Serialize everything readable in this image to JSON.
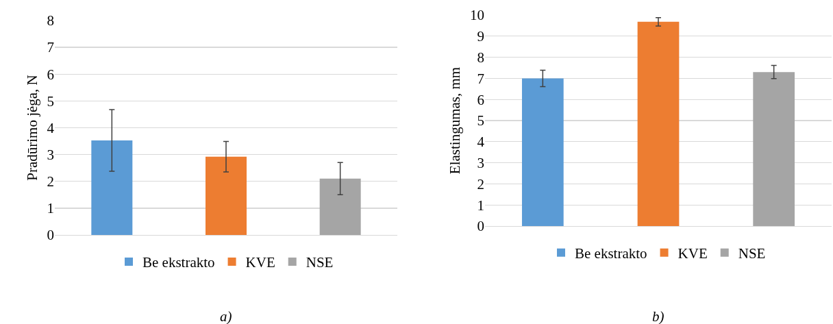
{
  "chart_data": [
    {
      "type": "bar",
      "ylabel": "Pradūrimo jėga, N",
      "categories": [
        null,
        null,
        null
      ],
      "series": [
        {
          "name": "Be ekstrakto",
          "color": "#5b9bd5",
          "values": [
            3.53,
            null,
            null
          ],
          "errors": [
            1.15,
            null,
            null
          ]
        },
        {
          "name": "KVE",
          "color": "#ed7d31",
          "values": [
            null,
            2.92,
            null
          ],
          "errors": [
            null,
            0.57,
            null
          ]
        },
        {
          "name": "NSE",
          "color": "#a5a5a5",
          "values": [
            null,
            null,
            2.1
          ],
          "errors": [
            null,
            null,
            0.6
          ]
        }
      ],
      "ylim": [
        0,
        8
      ],
      "yticks": [
        0,
        1,
        2,
        3,
        4,
        5,
        6,
        7,
        8
      ],
      "grid": "y",
      "legend": "bottom",
      "tick_labels": "y",
      "annotations": [
        "a)"
      ]
    },
    {
      "type": "bar",
      "ylabel": "Elastingumas, mm",
      "categories": [
        null,
        null,
        null
      ],
      "series": [
        {
          "name": "Be ekstrakto",
          "color": "#5b9bd5",
          "values": [
            7.0,
            null,
            null
          ],
          "errors": [
            0.39,
            null,
            null
          ]
        },
        {
          "name": "KVE",
          "color": "#ed7d31",
          "values": [
            null,
            9.68,
            null
          ],
          "errors": [
            null,
            0.2,
            null
          ]
        },
        {
          "name": "NSE",
          "color": "#a5a5a5",
          "values": [
            null,
            null,
            7.3
          ],
          "errors": [
            null,
            null,
            0.31
          ]
        }
      ],
      "ylim": [
        0,
        10
      ],
      "yticks": [
        0,
        1,
        2,
        3,
        4,
        5,
        6,
        7,
        8,
        9,
        10
      ],
      "grid": "y",
      "legend": "bottom",
      "tick_labels": "y",
      "annotations": [
        "b)"
      ]
    }
  ]
}
